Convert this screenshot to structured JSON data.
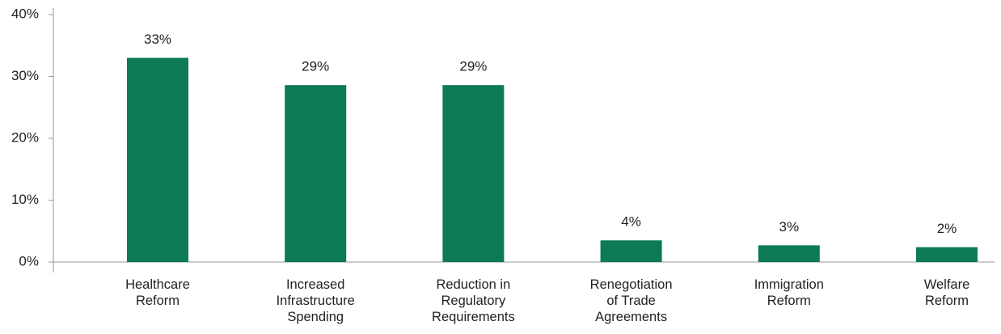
{
  "chart_data": {
    "type": "bar",
    "categories": [
      "Healthcare Reform",
      "Increased Infrastructure Spending",
      "Reduction in Regulatory Requirements",
      "Renegotiation of Trade Agreements",
      "Immigration Reform",
      "Welfare Reform"
    ],
    "values": [
      33,
      28.6,
      28.6,
      3.5,
      2.7,
      2.4
    ],
    "value_labels": [
      "33%",
      "29%",
      "29%",
      "4%",
      "3%",
      "2%"
    ],
    "color": "#0b7a55",
    "ylim": [
      0,
      40
    ],
    "yticks": [
      {
        "value": 0,
        "label": "0%"
      },
      {
        "value": 10,
        "label": "10%"
      },
      {
        "value": 20,
        "label": "20%"
      },
      {
        "value": 30,
        "label": "30%"
      },
      {
        "value": 40,
        "label": "40%"
      }
    ],
    "grid": false
  }
}
